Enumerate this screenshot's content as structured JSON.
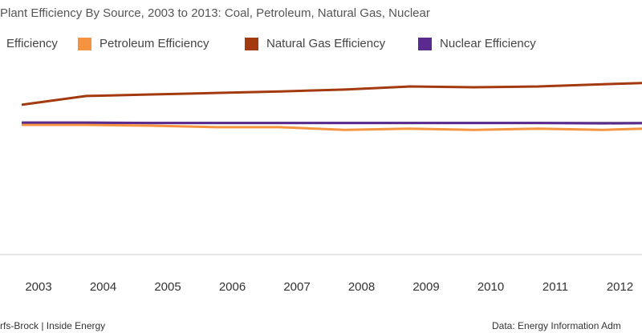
{
  "chart_data": {
    "type": "line",
    "title": "Plant Efficiency By Source, 2003 to 2013: Coal, Petroleum, Natural Gas, Nuclear",
    "categories": [
      "2003",
      "2004",
      "2005",
      "2006",
      "2007",
      "2008",
      "2009",
      "2010",
      "2011",
      "2012",
      null
    ],
    "series": [
      {
        "name": "Efficiency",
        "color": "#8c8c8c",
        "values": [
          34.6,
          34.6,
          34.6,
          34.6,
          34.6,
          34.6,
          34.6,
          34.6,
          34.6,
          34.6,
          34.6
        ]
      },
      {
        "name": "Petroleum Efficiency",
        "color": "#f59340",
        "values": [
          34.1,
          34.1,
          33.9,
          33.5,
          33.5,
          32.8,
          33.1,
          32.8,
          33.1,
          32.8,
          33.3
        ]
      },
      {
        "name": "Natural Gas Efficiency",
        "color": "#a33a0f",
        "values": [
          39.4,
          41.7,
          42.1,
          42.5,
          42.9,
          43.4,
          44.2,
          44.0,
          44.2,
          44.8,
          45.3
        ]
      },
      {
        "name": "Nuclear Efficiency",
        "color": "#5b2a8e",
        "values": [
          34.7,
          34.7,
          34.6,
          34.6,
          34.6,
          34.6,
          34.6,
          34.6,
          34.6,
          34.5,
          34.6
        ]
      }
    ],
    "ylim": [
      0,
      50
    ],
    "credit": "rfs-Brock | Inside Energy",
    "source": "Data: Energy Information Adm"
  }
}
